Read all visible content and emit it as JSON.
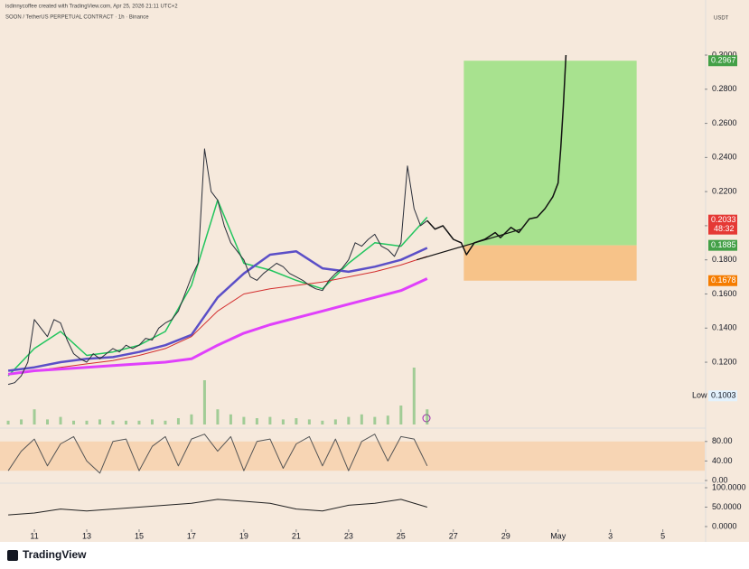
{
  "header": {
    "author_line": "isdinnycoffee created with TradingView.com, Apr 25, 2026 21:11 UTC+2"
  },
  "footer": {
    "brand": "TradingView"
  },
  "chart_data": {
    "type": "line",
    "title": "SOON / TetherUS PERPETUAL CONTRACT · 1h · Binance",
    "currency": "USDT",
    "xlim": [
      9.86,
      36.6
    ],
    "ylim": [
      0.0835,
      0.327
    ],
    "xticks": [
      11,
      13,
      15,
      17,
      19,
      21,
      23,
      25,
      27,
      29,
      {
        "value": 31,
        "label": "May"
      },
      {
        "value": 33,
        "label": "3"
      },
      {
        "value": 35,
        "label": "5"
      }
    ],
    "yticks": [
      {
        "value": 0.12,
        "label": "0.1200"
      },
      {
        "value": 0.14,
        "label": "0.1400"
      },
      {
        "value": 0.16,
        "label": "0.1600"
      },
      {
        "value": 0.18,
        "label": "0.1800"
      },
      {
        "value": 0.2,
        "label": "0.2000"
      },
      {
        "value": 0.22,
        "label": "0.2200"
      },
      {
        "value": 0.24,
        "label": "0.2400"
      },
      {
        "value": 0.26,
        "label": "0.2600"
      },
      {
        "value": 0.28,
        "label": "0.2800"
      },
      {
        "value": 0.3,
        "label": "0.3000"
      }
    ],
    "x": [
      10,
      10.25,
      10.5,
      10.75,
      11,
      11.25,
      11.5,
      11.75,
      12,
      12.25,
      12.5,
      12.75,
      13,
      13.25,
      13.5,
      13.75,
      14,
      14.25,
      14.5,
      14.75,
      15,
      15.25,
      15.5,
      15.75,
      16,
      16.25,
      16.5,
      16.75,
      17,
      17.25,
      17.5,
      17.75,
      18,
      18.25,
      18.5,
      18.75,
      19,
      19.25,
      19.5,
      19.75,
      20,
      20.25,
      20.5,
      20.75,
      21,
      21.25,
      21.5,
      21.75,
      22,
      22.25,
      22.5,
      22.75,
      23,
      23.25,
      23.5,
      23.75,
      24,
      24.25,
      24.5,
      24.75,
      25,
      25.25,
      25.5,
      25.75,
      26
    ],
    "series": [
      {
        "color": "#2a2e39",
        "values": [
          0.107,
          0.108,
          0.112,
          0.12,
          0.145,
          0.14,
          0.135,
          0.145,
          0.143,
          0.133,
          0.125,
          0.122,
          0.12,
          0.125,
          0.122,
          0.125,
          0.128,
          0.126,
          0.13,
          0.128,
          0.13,
          0.134,
          0.133,
          0.14,
          0.143,
          0.145,
          0.15,
          0.16,
          0.17,
          0.178,
          0.245,
          0.22,
          0.215,
          0.2,
          0.19,
          0.185,
          0.18,
          0.17,
          0.168,
          0.172,
          0.175,
          0.178,
          0.176,
          0.172,
          0.17,
          0.168,
          0.165,
          0.163,
          0.162,
          0.168,
          0.172,
          0.175,
          0.18,
          0.19,
          0.188,
          0.192,
          0.195,
          0.188,
          0.186,
          0.182,
          0.19,
          0.235,
          0.21,
          0.2,
          0.203
        ]
      }
    ],
    "ma_x": [
      10,
      11,
      12,
      13,
      14,
      15,
      16,
      17,
      18,
      19,
      20,
      21,
      22,
      23,
      24,
      25,
      26
    ],
    "moving_averages": [
      {
        "color": "#22c55e",
        "width": 1.5,
        "values": [
          0.112,
          0.128,
          0.138,
          0.124,
          0.126,
          0.13,
          0.138,
          0.165,
          0.215,
          0.178,
          0.174,
          0.168,
          0.163,
          0.178,
          0.19,
          0.188,
          0.205
        ]
      },
      {
        "color": "#5b4fc7",
        "width": 2.5,
        "values": [
          0.115,
          0.117,
          0.12,
          0.122,
          0.123,
          0.126,
          0.13,
          0.136,
          0.158,
          0.172,
          0.183,
          0.185,
          0.175,
          0.173,
          0.176,
          0.18,
          0.187
        ]
      },
      {
        "color": "#d32f2f",
        "width": 1,
        "values": [
          0.113,
          0.115,
          0.117,
          0.119,
          0.121,
          0.124,
          0.128,
          0.135,
          0.15,
          0.16,
          0.163,
          0.165,
          0.167,
          0.17,
          0.173,
          0.177,
          0.182
        ]
      },
      {
        "color": "#e040fb",
        "width": 3,
        "values": [
          0.113,
          0.115,
          0.116,
          0.117,
          0.118,
          0.119,
          0.12,
          0.122,
          0.13,
          0.137,
          0.142,
          0.146,
          0.15,
          0.154,
          0.158,
          0.162,
          0.169
        ]
      }
    ],
    "forecast": {
      "color": "#111111",
      "x": [
        26,
        26.3,
        26.6,
        27,
        27.3,
        27.5,
        27.8,
        28.2,
        28.6,
        28.8,
        29.2,
        29.5,
        29.9,
        30.2,
        30.5,
        30.8,
        31,
        31.1,
        31.2,
        31.3
      ],
      "values": [
        0.203,
        0.198,
        0.2,
        0.192,
        0.19,
        0.183,
        0.19,
        0.192,
        0.196,
        0.193,
        0.199,
        0.196,
        0.204,
        0.205,
        0.21,
        0.217,
        0.225,
        0.245,
        0.27,
        0.3
      ]
    },
    "trend_line": {
      "color": "#111111",
      "x": [
        25.6,
        29.6
      ],
      "values": [
        0.18,
        0.198
      ]
    },
    "position": {
      "x": [
        27.4,
        34.0
      ],
      "target": 0.2967,
      "entry": 0.1885,
      "stop": 0.1678,
      "profit_color": "#a8e28f",
      "loss_color": "#f7c389",
      "target_color": "#43a047",
      "stop_color": "#f57c00"
    },
    "last": {
      "value": 0.2033,
      "countdown": "48:32",
      "color": "#e53935"
    },
    "low": {
      "label": "Low",
      "value": 0.1003
    },
    "volume": {
      "color": "#4caf50",
      "ylim": [
        0,
        50
      ],
      "x": [
        10,
        10.5,
        11,
        11.5,
        12,
        12.5,
        13,
        13.5,
        14,
        14.5,
        15,
        15.5,
        16,
        16.5,
        17,
        17.5,
        18,
        18.5,
        19,
        19.5,
        20,
        20.5,
        21,
        21.5,
        22,
        22.5,
        23,
        23.5,
        24,
        24.5,
        25,
        25.5,
        26
      ],
      "values": [
        3,
        4,
        12,
        4,
        6,
        3,
        3,
        4,
        3,
        3,
        3,
        4,
        3,
        5,
        8,
        35,
        12,
        8,
        6,
        5,
        6,
        4,
        5,
        4,
        3,
        4,
        6,
        8,
        6,
        7,
        15,
        45,
        12
      ]
    },
    "stoch": {
      "color": "#555555",
      "ylim": [
        0,
        100
      ],
      "band": [
        20,
        80
      ],
      "yticks": [
        {
          "value": 80,
          "label": "80.00"
        },
        {
          "value": 40,
          "label": "40.00"
        },
        {
          "value": 0,
          "label": "0.00"
        }
      ],
      "x": [
        10,
        10.5,
        11,
        11.5,
        12,
        12.5,
        13,
        13.5,
        14,
        14.5,
        15,
        15.5,
        16,
        16.5,
        17,
        17.5,
        18,
        18.5,
        19,
        19.5,
        20,
        20.5,
        21,
        21.5,
        22,
        22.5,
        23,
        23.5,
        24,
        24.5,
        25,
        25.5,
        26
      ],
      "values": [
        20,
        60,
        85,
        30,
        75,
        90,
        40,
        15,
        80,
        85,
        20,
        70,
        90,
        30,
        85,
        95,
        60,
        90,
        20,
        80,
        85,
        25,
        75,
        90,
        30,
        85,
        20,
        80,
        95,
        40,
        90,
        85,
        30
      ]
    },
    "oscillator": {
      "color": "#222222",
      "ylim": [
        0,
        100
      ],
      "yticks": [
        {
          "value": 100,
          "label": "100.0000"
        },
        {
          "value": 50,
          "label": "50.0000"
        },
        {
          "value": 0,
          "label": "0.0000"
        }
      ],
      "x": [
        10,
        11,
        12,
        13,
        14,
        15,
        16,
        17,
        18,
        19,
        20,
        21,
        22,
        23,
        24,
        25,
        26
      ],
      "values": [
        30,
        35,
        45,
        40,
        45,
        50,
        55,
        60,
        70,
        65,
        60,
        45,
        40,
        55,
        60,
        70,
        50
      ]
    }
  }
}
